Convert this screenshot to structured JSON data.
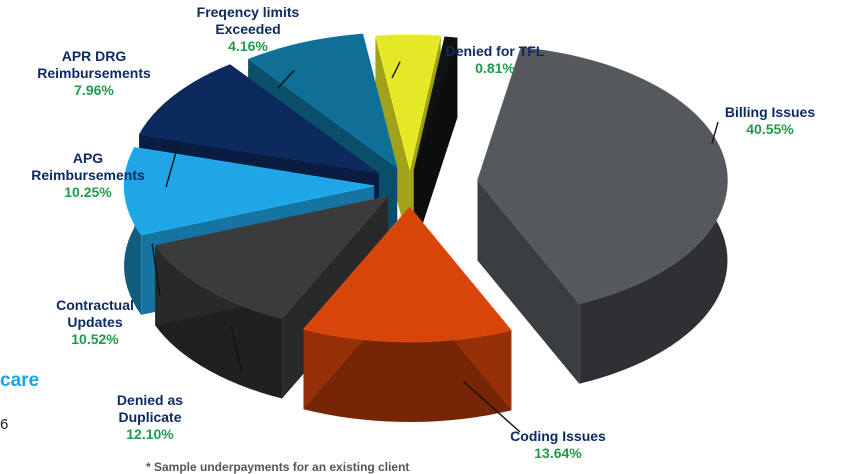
{
  "chart_data": {
    "type": "pie",
    "title": "",
    "slices": [
      {
        "label": "Billing Issues",
        "value": 40.55,
        "value_label": "40.55%",
        "color": "#55585c"
      },
      {
        "label": "Coding Issues",
        "value": 13.64,
        "value_label": "13.64%",
        "color": "#d6450a"
      },
      {
        "label": "Denied as\nDuplicate",
        "value": 12.1,
        "value_label": "12.10%",
        "color": "#3a3b3d"
      },
      {
        "label": "Contractual\nUpdates",
        "value": 10.52,
        "value_label": "10.52%",
        "color": "#1ea6e6"
      },
      {
        "label": "APG\nReimbursements",
        "value": 10.25,
        "value_label": "10.25%",
        "color": "#0d2a5e"
      },
      {
        "label": "APR DRG\nReimbursements",
        "value": 7.96,
        "value_label": "7.96%",
        "color": "#0f6f96"
      },
      {
        "label": "Freqency limits\nExceeded",
        "value": 4.16,
        "value_label": "4.16%",
        "color": "#e5e826"
      },
      {
        "label": "Denied for TFL",
        "value": 0.81,
        "value_label": "0.81%",
        "color": "#111214"
      }
    ],
    "label_color": "#1f9a4a",
    "style": "3d-exploded"
  },
  "page": {
    "heading_fragment": "care",
    "number_fragment": "6",
    "footnote": "* Sample underpayments for an existing client"
  }
}
